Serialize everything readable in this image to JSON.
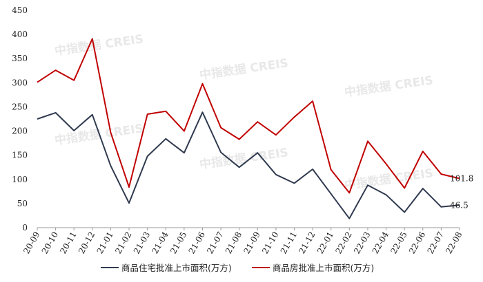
{
  "watermark": "中指数据 CREIS",
  "chart_data": {
    "type": "line",
    "title": "",
    "xlabel": "",
    "ylabel": "",
    "ylim": [
      0,
      450
    ],
    "yticks": [
      0,
      50,
      100,
      150,
      200,
      250,
      300,
      350,
      400,
      450
    ],
    "grid": false,
    "legend_position": "bottom",
    "categories": [
      "20-09",
      "20-10",
      "20-11",
      "20-12",
      "21-01",
      "21-02",
      "21-03",
      "21-04",
      "21-05",
      "21-06",
      "21-07",
      "21-08",
      "21-09",
      "21-10",
      "21-11",
      "21-12",
      "22-01",
      "22-02",
      "22-03",
      "22-04",
      "22-05",
      "22-06",
      "22-07",
      "22-08"
    ],
    "series": [
      {
        "name": "商品住宅批准上市面积(万方)",
        "color": "#2f3a4f",
        "values": [
          225,
          238,
          201,
          234,
          128,
          51,
          148,
          184,
          155,
          239,
          156,
          125,
          155,
          110,
          92,
          121,
          70,
          19,
          88,
          68,
          32,
          81,
          43,
          46.5
        ],
        "end_label": "46.5"
      },
      {
        "name": "商品房批准上市面积(万方)",
        "color": "#c00000",
        "values": [
          301,
          326,
          305,
          391,
          197,
          84,
          235,
          241,
          200,
          298,
          207,
          183,
          219,
          192,
          229,
          262,
          120,
          72,
          179,
          132,
          82,
          158,
          111,
          101.8
        ],
        "end_label": "101.8"
      }
    ]
  }
}
